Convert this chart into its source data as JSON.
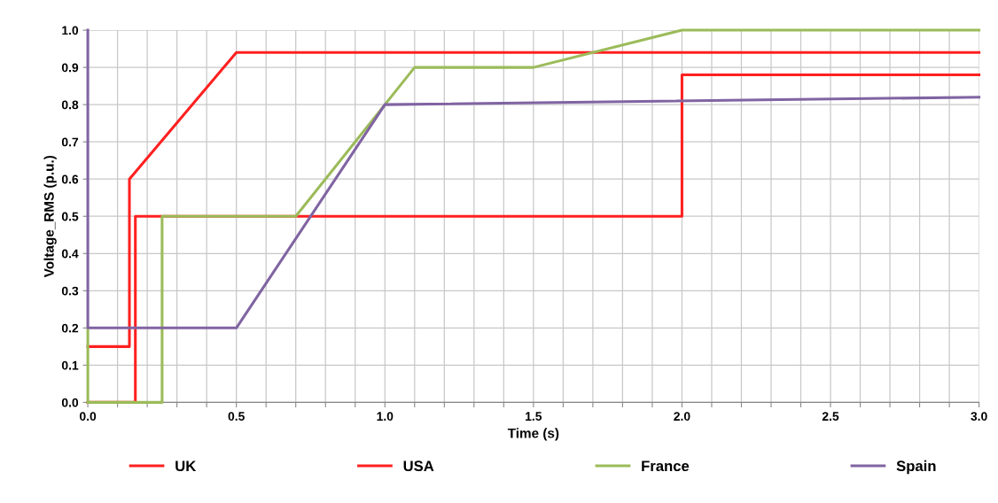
{
  "chart_data": {
    "type": "line",
    "xlabel": "Time (s)",
    "ylabel": "Voltage_RMS (p.u.)",
    "xlim": [
      0,
      3
    ],
    "ylim": [
      0,
      1
    ],
    "xticks": [
      {
        "value": 0,
        "label": "0.0"
      },
      {
        "value": 0.1,
        "label": null
      },
      {
        "value": 0.2,
        "label": null
      },
      {
        "value": 0.3,
        "label": null
      },
      {
        "value": 0.4,
        "label": null
      },
      {
        "value": 0.5,
        "label": "0.5"
      },
      {
        "value": 0.6,
        "label": null
      },
      {
        "value": 0.7,
        "label": null
      },
      {
        "value": 0.8,
        "label": null
      },
      {
        "value": 0.9,
        "label": null
      },
      {
        "value": 1.0,
        "label": "1.0"
      },
      {
        "value": 1.1,
        "label": null
      },
      {
        "value": 1.2,
        "label": null
      },
      {
        "value": 1.3,
        "label": null
      },
      {
        "value": 1.4,
        "label": null
      },
      {
        "value": 1.5,
        "label": "1.5"
      },
      {
        "value": 1.6,
        "label": null
      },
      {
        "value": 1.7,
        "label": null
      },
      {
        "value": 1.8,
        "label": null
      },
      {
        "value": 1.9,
        "label": null
      },
      {
        "value": 2.0,
        "label": "2.0"
      },
      {
        "value": 2.1,
        "label": null
      },
      {
        "value": 2.2,
        "label": null
      },
      {
        "value": 2.3,
        "label": null
      },
      {
        "value": 2.4,
        "label": null
      },
      {
        "value": 2.5,
        "label": "2.5"
      },
      {
        "value": 2.6,
        "label": null
      },
      {
        "value": 2.7,
        "label": null
      },
      {
        "value": 2.8,
        "label": null
      },
      {
        "value": 2.9,
        "label": null
      },
      {
        "value": 3.0,
        "label": "3.0"
      }
    ],
    "yticks": [
      {
        "value": 0,
        "label": "0.0"
      },
      0.1,
      0.2,
      0.3,
      0.4,
      0.5,
      0.6,
      0.7,
      0.8,
      0.9,
      {
        "value": 1,
        "label": "1.0"
      }
    ],
    "grid": true,
    "legend": "bottom",
    "marker": "none",
    "line_style": "solid",
    "series": [
      {
        "name": "UK",
        "color": "#ff2020",
        "x": [
          0,
          0.14,
          0.14,
          0.5,
          3.0
        ],
        "values": [
          0.15,
          0.15,
          0.6,
          0.94,
          0.94
        ]
      },
      {
        "name": "USA",
        "color": "#ff2020",
        "x": [
          0,
          0.16,
          0.16,
          2.0,
          2.0,
          3.0
        ],
        "values": [
          0,
          0,
          0.5,
          0.5,
          0.88,
          0.88
        ]
      },
      {
        "name": "France",
        "color": "#9bbb59",
        "x": [
          0,
          0,
          0.25,
          0.25,
          0.7,
          1.1,
          1.5,
          2.0,
          3.0
        ],
        "values": [
          0.2,
          0,
          0,
          0.5,
          0.5,
          0.9,
          0.9,
          1.0,
          1.0
        ]
      },
      {
        "name": "Spain",
        "color": "#8064a2",
        "x": [
          0,
          0,
          0.5,
          1.0,
          3.0
        ],
        "values": [
          1.0,
          0.2,
          0.2,
          0.8,
          0.82
        ]
      }
    ]
  }
}
